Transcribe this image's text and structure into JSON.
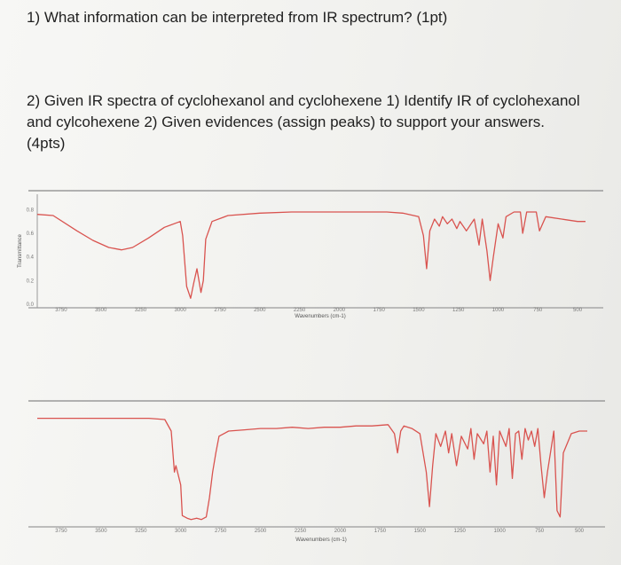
{
  "question1": "1) What information can be interpreted from IR spectrum? (1pt)",
  "question2": {
    "line1": "2) Given IR spectra of cyclohexanol and cyclohexene 1) Identify IR of cyclohexanol",
    "line2": "and cylcohexene 2) Given evidences (assign peaks) to support your answers.",
    "line3": "(4pts)"
  },
  "colors": {
    "spectrum": "#d9534f",
    "frame": "#9a9a9a"
  },
  "chart_data": [
    {
      "type": "line",
      "xlabel": "Wavenumbers (cm-1)",
      "ylabel": "Transmittance",
      "x_ticks": [
        "3750",
        "3500",
        "3250",
        "3000",
        "2750",
        "2500",
        "2250",
        "2000",
        "1750",
        "1500",
        "1250",
        "1000",
        "750",
        "500"
      ],
      "y_ticks": [
        "0.8",
        "0.6",
        "0.4",
        "0.2",
        "0.0"
      ],
      "xlim": [
        3900,
        450
      ],
      "ylim": [
        0.0,
        0.9
      ],
      "series": [
        {
          "x": [
            3900,
            3800,
            3650,
            3550,
            3450,
            3370,
            3300,
            3200,
            3100,
            3000,
            2985,
            2960,
            2935,
            2915,
            2895,
            2870,
            2855,
            2840,
            2800,
            2700,
            2500,
            2300,
            2000,
            1800,
            1700,
            1600,
            1500,
            1470,
            1450,
            1430,
            1400,
            1370,
            1350,
            1320,
            1290,
            1260,
            1240,
            1200,
            1150,
            1120,
            1100,
            1070,
            1050,
            1030,
            1000,
            970,
            950,
            900,
            860,
            845,
            820,
            800,
            760,
            740,
            700,
            600,
            500,
            450
          ],
          "y": [
            0.76,
            0.75,
            0.62,
            0.54,
            0.48,
            0.46,
            0.48,
            0.56,
            0.65,
            0.7,
            0.58,
            0.15,
            0.05,
            0.18,
            0.3,
            0.1,
            0.2,
            0.55,
            0.7,
            0.75,
            0.77,
            0.78,
            0.78,
            0.78,
            0.78,
            0.77,
            0.74,
            0.58,
            0.3,
            0.62,
            0.72,
            0.66,
            0.74,
            0.68,
            0.72,
            0.64,
            0.7,
            0.62,
            0.72,
            0.5,
            0.72,
            0.45,
            0.2,
            0.4,
            0.68,
            0.56,
            0.74,
            0.78,
            0.78,
            0.6,
            0.78,
            0.78,
            0.78,
            0.62,
            0.74,
            0.72,
            0.7,
            0.7
          ]
        }
      ]
    },
    {
      "type": "line",
      "xlabel": "Wavenumbers (cm-1)",
      "x_ticks": [
        "3750",
        "3500",
        "3250",
        "3000",
        "2750",
        "2500",
        "2250",
        "2000",
        "1750",
        "1500",
        "1250",
        "1000",
        "750",
        "500"
      ],
      "xlim": [
        3900,
        450
      ],
      "ylim": [
        0.0,
        0.9
      ],
      "series": [
        {
          "x": [
            3900,
            3700,
            3500,
            3300,
            3200,
            3100,
            3060,
            3040,
            3030,
            3000,
            2990,
            2960,
            2935,
            2900,
            2870,
            2840,
            2820,
            2800,
            2780,
            2760,
            2700,
            2600,
            2500,
            2400,
            2300,
            2200,
            2100,
            2000,
            1900,
            1800,
            1700,
            1660,
            1640,
            1620,
            1600,
            1550,
            1500,
            1460,
            1440,
            1420,
            1400,
            1370,
            1340,
            1320,
            1300,
            1270,
            1240,
            1200,
            1180,
            1160,
            1140,
            1100,
            1080,
            1060,
            1040,
            1020,
            1000,
            960,
            940,
            920,
            900,
            880,
            860,
            840,
            820,
            800,
            780,
            760,
            740,
            720,
            700,
            660,
            640,
            620,
            600,
            550,
            500,
            450
          ],
          "y": [
            0.82,
            0.82,
            0.82,
            0.82,
            0.82,
            0.81,
            0.72,
            0.4,
            0.45,
            0.3,
            0.06,
            0.04,
            0.03,
            0.04,
            0.03,
            0.05,
            0.2,
            0.4,
            0.55,
            0.68,
            0.72,
            0.73,
            0.74,
            0.74,
            0.75,
            0.74,
            0.75,
            0.75,
            0.76,
            0.76,
            0.77,
            0.7,
            0.55,
            0.72,
            0.76,
            0.74,
            0.7,
            0.4,
            0.13,
            0.45,
            0.7,
            0.6,
            0.72,
            0.55,
            0.7,
            0.45,
            0.68,
            0.58,
            0.74,
            0.5,
            0.7,
            0.62,
            0.72,
            0.4,
            0.68,
            0.3,
            0.72,
            0.6,
            0.74,
            0.35,
            0.7,
            0.72,
            0.5,
            0.74,
            0.65,
            0.72,
            0.6,
            0.74,
            0.45,
            0.2,
            0.4,
            0.72,
            0.1,
            0.05,
            0.55,
            0.7,
            0.72,
            0.72
          ]
        }
      ]
    }
  ]
}
